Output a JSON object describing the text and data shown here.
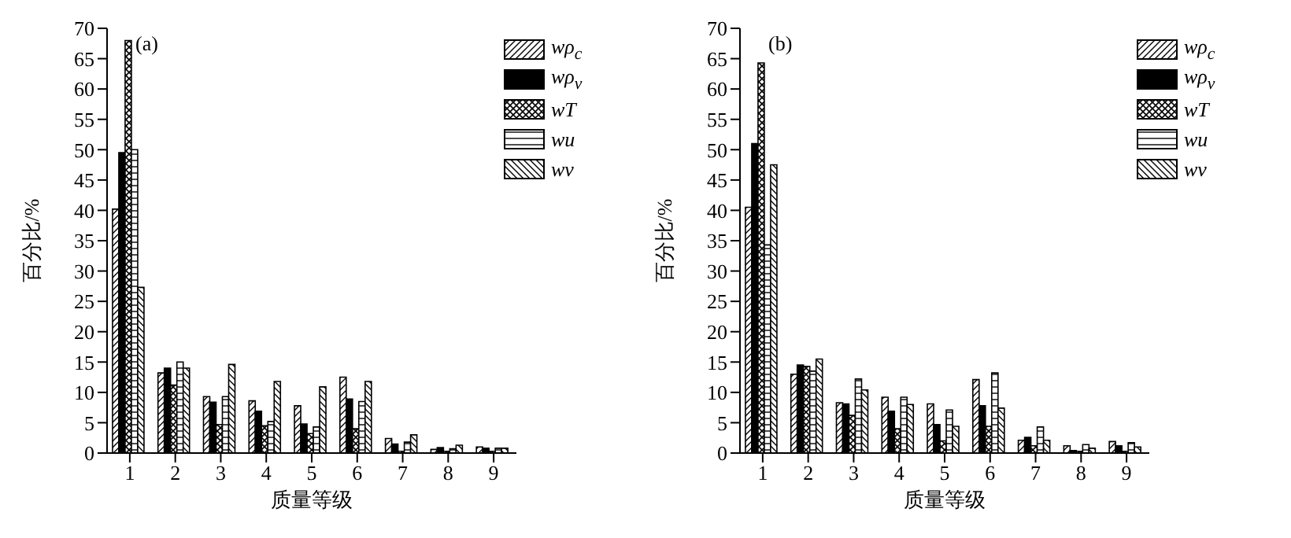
{
  "chart_data": [
    {
      "type": "bar",
      "title": "(a)",
      "xlabel": "质量等级",
      "ylabel": "百分比/%",
      "categories": [
        "1",
        "2",
        "3",
        "4",
        "5",
        "6",
        "7",
        "8",
        "9"
      ],
      "series": [
        {
          "name": "wρ$_{c}$",
          "color": "#000000",
          "values": [
            40.2,
            13.2,
            9.3,
            8.6,
            7.8,
            12.5,
            2.4,
            0.6,
            1.0
          ]
        },
        {
          "name": "wρ$_{v}$",
          "color": "#000000",
          "values": [
            49.5,
            14.0,
            8.4,
            6.9,
            4.8,
            8.9,
            1.5,
            0.9,
            0.8
          ]
        },
        {
          "name": "wT",
          "color": "#000000",
          "values": [
            68.0,
            11.2,
            4.7,
            4.5,
            3.2,
            4.0,
            0.3,
            0.3,
            0.3
          ]
        },
        {
          "name": "wu",
          "color": "#000000",
          "values": [
            50.0,
            15.0,
            9.3,
            5.2,
            4.3,
            8.5,
            1.8,
            0.7,
            0.8
          ]
        },
        {
          "name": "wv",
          "color": "#000000",
          "values": [
            27.3,
            14.0,
            14.6,
            11.8,
            10.9,
            11.8,
            3.0,
            1.3,
            0.8
          ]
        }
      ],
      "ylim": [
        0,
        70
      ],
      "yticks": [
        0,
        5,
        10,
        15,
        20,
        25,
        30,
        35,
        40,
        45,
        50,
        55,
        60,
        65,
        70
      ],
      "grid": false,
      "legend": "top right"
    },
    {
      "type": "bar",
      "title": "(b)",
      "xlabel": "质量等级",
      "ylabel": "百分比/%",
      "categories": [
        "1",
        "2",
        "3",
        "4",
        "5",
        "6",
        "7",
        "8",
        "9"
      ],
      "series": [
        {
          "name": "wρ$_{c}$",
          "color": "#000000",
          "values": [
            40.5,
            13.0,
            8.3,
            9.2,
            8.1,
            12.1,
            2.1,
            1.2,
            1.9
          ]
        },
        {
          "name": "wρ$_{v}$",
          "color": "#000000",
          "values": [
            51.0,
            14.5,
            8.1,
            6.9,
            4.7,
            7.8,
            2.6,
            0.4,
            1.2
          ]
        },
        {
          "name": "wT",
          "color": "#000000",
          "values": [
            64.3,
            14.3,
            6.2,
            4.0,
            2.0,
            4.4,
            1.2,
            0.3,
            0.3
          ]
        },
        {
          "name": "wu",
          "color": "#000000",
          "values": [
            34.3,
            13.5,
            12.2,
            9.2,
            7.1,
            13.2,
            4.3,
            1.4,
            1.7
          ]
        },
        {
          "name": "wv",
          "color": "#000000",
          "values": [
            47.5,
            15.5,
            10.4,
            8.0,
            4.4,
            7.4,
            2.1,
            0.8,
            1.0
          ]
        }
      ],
      "ylim": [
        0,
        70
      ],
      "yticks": [
        0,
        5,
        10,
        15,
        20,
        25,
        30,
        35,
        40,
        45,
        50,
        55,
        60,
        65,
        70
      ],
      "grid": false,
      "legend": "top right"
    }
  ]
}
